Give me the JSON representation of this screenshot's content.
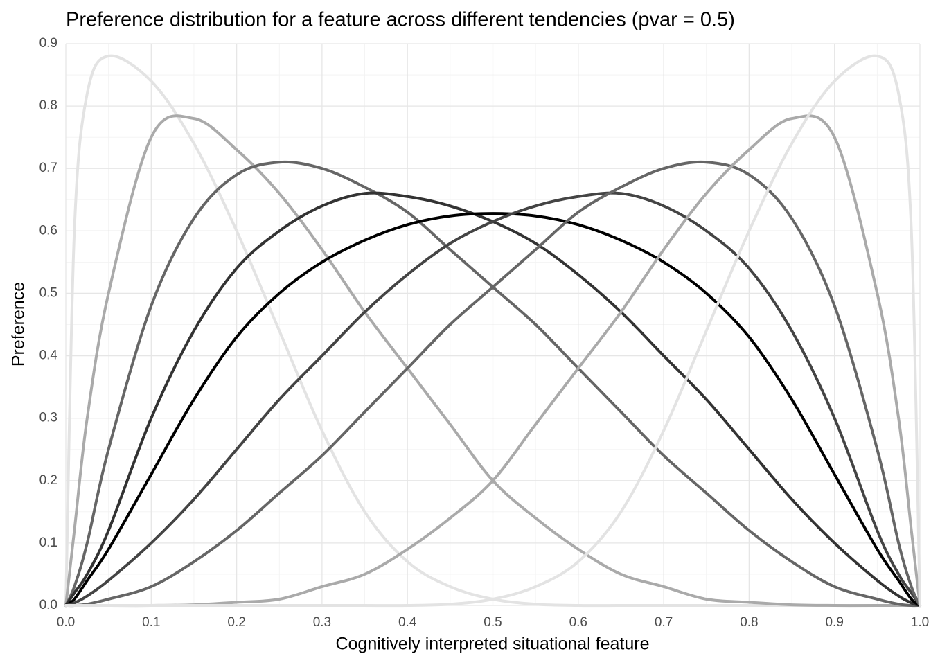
{
  "chart_data": {
    "type": "line",
    "title": "Preference distribution for a feature across different tendencies (pvar = 0.5)",
    "x_label": "Cognitively interpreted situational feature",
    "y_label": "Preference",
    "x": [
      0,
      0.01,
      0.025,
      0.05,
      0.1,
      0.15,
      0.2,
      0.25,
      0.3,
      0.35,
      0.4,
      0.45,
      0.5,
      0.55,
      0.6,
      0.65,
      0.7,
      0.75,
      0.8,
      0.85,
      0.9,
      0.95,
      0.975,
      0.99,
      1
    ],
    "series": [
      {
        "color": "#e3e3e3",
        "values": [
          0,
          0.6,
          0.82,
          0.88,
          0.84,
          0.74,
          0.6,
          0.44,
          0.28,
          0.15,
          0.07,
          0.03,
          0.01,
          0.002,
          0,
          0,
          0,
          0,
          0,
          0,
          0,
          0,
          0,
          0,
          0
        ]
      },
      {
        "color": "#aaaaaa",
        "values": [
          0,
          0.12,
          0.3,
          0.5,
          0.75,
          0.78,
          0.73,
          0.66,
          0.57,
          0.47,
          0.38,
          0.29,
          0.2,
          0.14,
          0.09,
          0.05,
          0.03,
          0.01,
          0.005,
          0.001,
          0,
          0,
          0,
          0,
          0
        ]
      },
      {
        "color": "#666666",
        "values": [
          0,
          0.03,
          0.1,
          0.25,
          0.48,
          0.62,
          0.69,
          0.71,
          0.7,
          0.67,
          0.63,
          0.57,
          0.51,
          0.45,
          0.38,
          0.31,
          0.24,
          0.18,
          0.12,
          0.07,
          0.03,
          0.01,
          0.002,
          0,
          0
        ]
      },
      {
        "color": "#333333",
        "values": [
          0,
          0.02,
          0.05,
          0.12,
          0.3,
          0.44,
          0.54,
          0.6,
          0.64,
          0.66,
          0.655,
          0.64,
          0.615,
          0.58,
          0.53,
          0.47,
          0.4,
          0.33,
          0.25,
          0.17,
          0.1,
          0.04,
          0.015,
          0.004,
          0
        ]
      },
      {
        "color": "#000000",
        "values": [
          0,
          0.01,
          0.04,
          0.09,
          0.21,
          0.33,
          0.43,
          0.5,
          0.55,
          0.585,
          0.61,
          0.624,
          0.628,
          0.624,
          0.61,
          0.585,
          0.55,
          0.5,
          0.43,
          0.33,
          0.21,
          0.09,
          0.04,
          0.01,
          0
        ]
      },
      {
        "color": "#444444",
        "values": [
          0,
          0.004,
          0.015,
          0.04,
          0.1,
          0.17,
          0.25,
          0.33,
          0.4,
          0.47,
          0.53,
          0.58,
          0.615,
          0.64,
          0.655,
          0.66,
          0.64,
          0.6,
          0.54,
          0.44,
          0.3,
          0.12,
          0.05,
          0.02,
          0
        ]
      },
      {
        "color": "#666666",
        "values": [
          0,
          0,
          0.002,
          0.01,
          0.03,
          0.07,
          0.12,
          0.18,
          0.24,
          0.31,
          0.38,
          0.45,
          0.51,
          0.57,
          0.63,
          0.67,
          0.7,
          0.71,
          0.69,
          0.62,
          0.48,
          0.25,
          0.1,
          0.03,
          0
        ]
      },
      {
        "color": "#aaaaaa",
        "values": [
          0,
          0,
          0,
          0,
          0,
          0.001,
          0.005,
          0.01,
          0.03,
          0.05,
          0.09,
          0.14,
          0.2,
          0.29,
          0.38,
          0.47,
          0.57,
          0.66,
          0.73,
          0.78,
          0.75,
          0.5,
          0.3,
          0.12,
          0
        ]
      },
      {
        "color": "#e3e3e3",
        "values": [
          0,
          0,
          0,
          0,
          0,
          0,
          0,
          0,
          0,
          0,
          0,
          0.002,
          0.01,
          0.03,
          0.07,
          0.15,
          0.28,
          0.44,
          0.6,
          0.74,
          0.84,
          0.88,
          0.82,
          0.6,
          0
        ]
      }
    ],
    "xlim": [
      0,
      1
    ],
    "ylim": [
      0,
      0.9
    ],
    "xticks": [
      {
        "value": 0,
        "label": "0.0"
      },
      0.1,
      0.2,
      0.3,
      0.4,
      0.5,
      0.6,
      0.7,
      0.8,
      0.9,
      {
        "value": 1,
        "label": "1.0"
      }
    ],
    "yticks": [
      {
        "value": 0,
        "label": "0.0"
      },
      0.1,
      0.2,
      0.3,
      0.4,
      0.5,
      0.6,
      0.7,
      0.8,
      0.9
    ],
    "grid": true,
    "minor_grid": true
  }
}
